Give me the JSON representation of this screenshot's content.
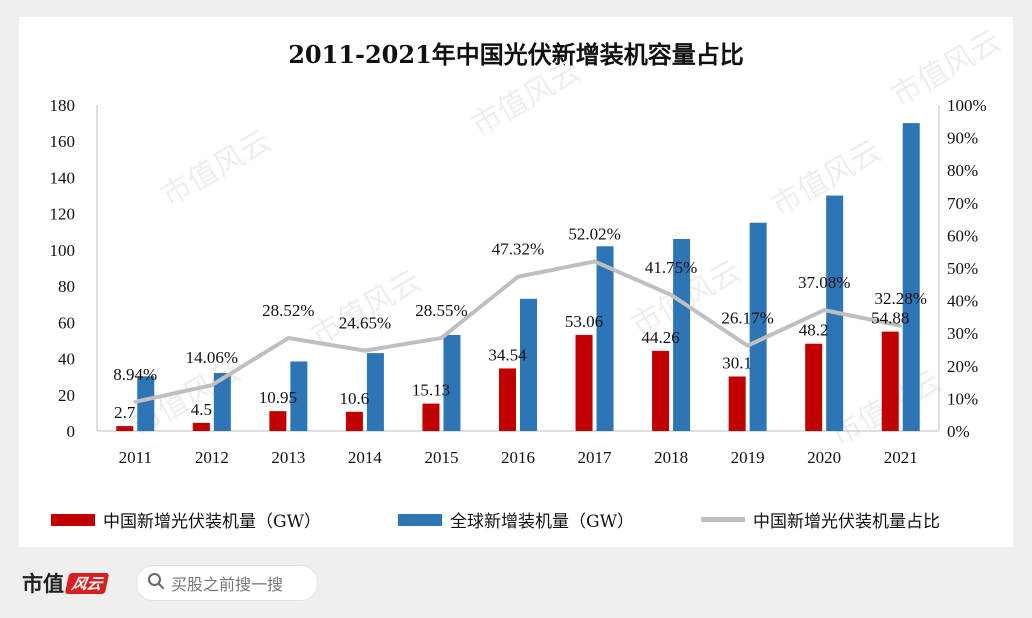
{
  "chart_data": {
    "type": "bar",
    "title": "2011-2021年中国光伏新增装机容量占比",
    "categories": [
      "2011",
      "2012",
      "2013",
      "2014",
      "2015",
      "2016",
      "2017",
      "2018",
      "2019",
      "2020",
      "2021"
    ],
    "series": [
      {
        "name": "中国新增光伏装机量（GW）",
        "kind": "bar",
        "axis": "left",
        "color": "#c00000",
        "values": [
          2.7,
          4.5,
          10.95,
          10.6,
          15.13,
          34.54,
          53.06,
          44.26,
          30.1,
          48.2,
          54.88
        ],
        "labels": [
          "2.7",
          "4.5",
          "10.95",
          "10.6",
          "15.13",
          "34.54",
          "53.06",
          "44.26",
          "30.1",
          "48.2",
          "54.88"
        ]
      },
      {
        "name": "全球新增装机量（GW）",
        "kind": "bar",
        "axis": "left",
        "color": "#2e75b6",
        "values": [
          30.2,
          32,
          38.4,
          43,
          53,
          73,
          102,
          106,
          115,
          130,
          170
        ]
      },
      {
        "name": "中国新增光伏装机量占比",
        "kind": "line",
        "axis": "right",
        "color": "#bfbfbf",
        "values": [
          8.94,
          14.06,
          28.52,
          24.65,
          28.55,
          47.32,
          52.02,
          41.75,
          26.17,
          37.08,
          32.28
        ],
        "labels": [
          "8.94%",
          "14.06%",
          "28.52%",
          "24.65%",
          "28.55%",
          "47.32%",
          "52.02%",
          "41.75%",
          "26.17%",
          "37.08%",
          "32.28%"
        ]
      }
    ],
    "y_left": {
      "min": 0,
      "max": 180,
      "ticks": [
        "0",
        "20",
        "40",
        "60",
        "80",
        "100",
        "120",
        "140",
        "160",
        "180"
      ]
    },
    "y_right": {
      "min": 0,
      "max": 100,
      "ticks": [
        "0%",
        "10%",
        "20%",
        "30%",
        "40%",
        "50%",
        "60%",
        "70%",
        "80%",
        "90%",
        "100%"
      ]
    },
    "grid": false,
    "legend_position": "bottom"
  },
  "watermark": "市值风云",
  "footer": {
    "brand": "市值",
    "brand_badge": "风云",
    "search_placeholder": "买股之前搜一搜",
    "search_icon": "search-icon"
  }
}
